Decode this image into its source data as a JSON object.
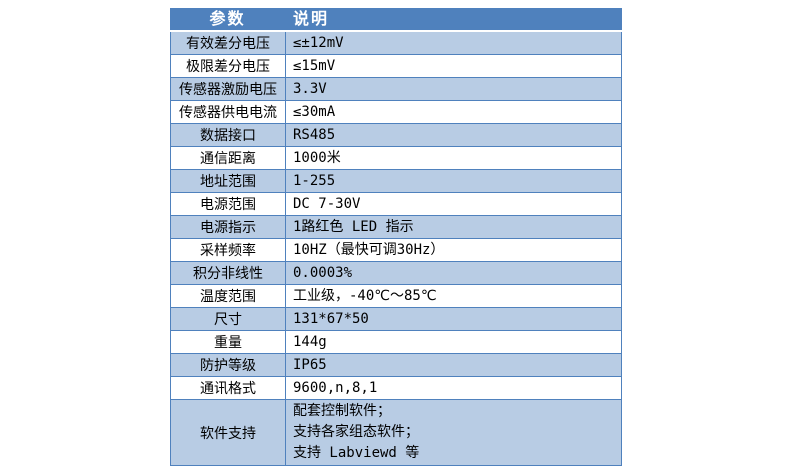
{
  "table": {
    "headers": {
      "param": "参数",
      "desc": "说明"
    },
    "rows": [
      {
        "param": "有效差分电压",
        "value": "≤±12mV"
      },
      {
        "param": "极限差分电压",
        "value": "≤15mV"
      },
      {
        "param": "传感器激励电压",
        "value": "3.3V"
      },
      {
        "param": "传感器供电电流",
        "value": "≤30mA"
      },
      {
        "param": "数据接口",
        "value": "RS485"
      },
      {
        "param": "通信距离",
        "value": "1000米"
      },
      {
        "param": "地址范围",
        "value": "1-255"
      },
      {
        "param": "电源范围",
        "value": "DC 7-30V"
      },
      {
        "param": "电源指示",
        "value": "1路红色 LED 指示"
      },
      {
        "param": "采样频率",
        "value": "10HZ（最快可调30Hz）"
      },
      {
        "param": "积分非线性",
        "value": "0.0003%"
      },
      {
        "param": "温度范围",
        "value": "工业级，-40℃～85℃"
      },
      {
        "param": "尺寸",
        "value": "131*67*50"
      },
      {
        "param": "重量",
        "value": "144g"
      },
      {
        "param": "防护等级",
        "value": "IP65"
      },
      {
        "param": "通讯格式",
        "value": "9600,n,8,1"
      },
      {
        "param": "软件支持",
        "value_lines": [
          "配套控制软件；",
          "支持各家组态软件；",
          "支持 Labviewd 等"
        ]
      }
    ],
    "colors": {
      "header_bg": "#4f81bd",
      "header_text": "#ffffff",
      "band_bg": "#b8cce4",
      "row_bg": "#ffffff",
      "border": "#4f81bd",
      "row_text": "#000000"
    }
  }
}
